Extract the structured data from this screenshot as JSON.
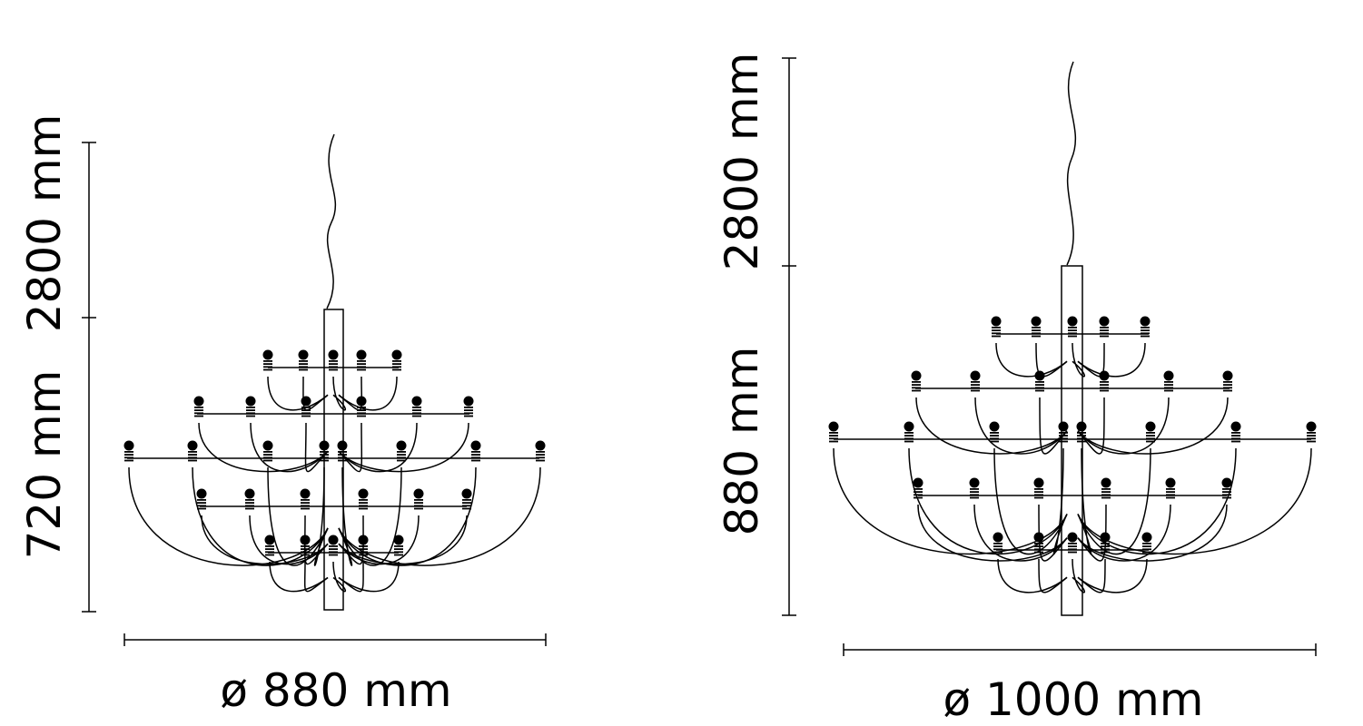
{
  "drawings": [
    {
      "name": "small-chandelier",
      "drop_height_label": "2800 mm",
      "body_height_label": "720 mm",
      "diameter_label": "ø 880 mm",
      "bulb_rows": [
        5,
        6,
        8,
        6,
        5
      ]
    },
    {
      "name": "large-chandelier",
      "drop_height_label": "2800 mm",
      "body_height_label": "880 mm",
      "diameter_label": "ø 1000 mm",
      "bulb_rows": [
        5,
        6,
        8,
        6,
        5
      ]
    }
  ],
  "colors": {
    "line": "#000000",
    "background": "#ffffff"
  }
}
